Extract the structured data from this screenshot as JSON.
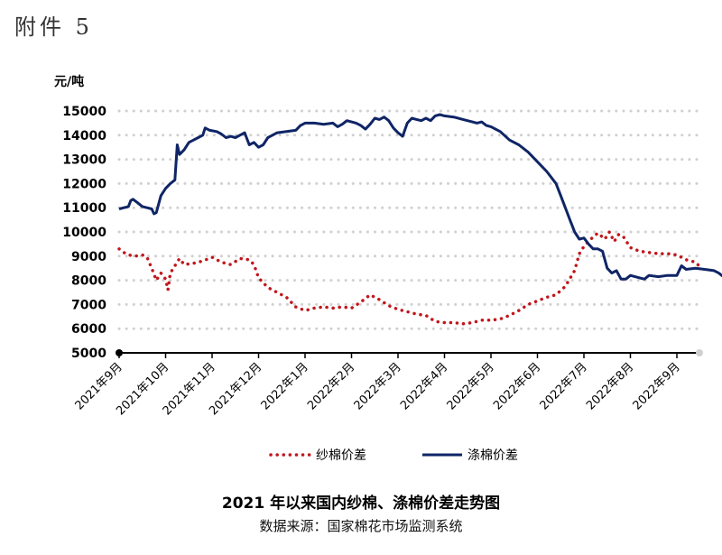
{
  "header": {
    "attachment_label": "附件 5"
  },
  "chart_data": {
    "type": "line",
    "title": "2021 年以来国内纱棉、涤棉价差走势图",
    "source": "数据来源：国家棉花市场监测系统",
    "unit_label": "元/吨",
    "ylim": [
      5000,
      15000
    ],
    "yticks": [
      5000,
      6000,
      7000,
      8000,
      9000,
      10000,
      11000,
      12000,
      13000,
      14000,
      15000
    ],
    "xticks": [
      "2021年9月",
      "2021年10月",
      "2021年11月",
      "2021年12月",
      "2022年1月",
      "2022年2月",
      "2022年3月",
      "2022年4月",
      "2022年5月",
      "2022年6月",
      "2022年7月",
      "2022年8月",
      "2022年9月"
    ],
    "grid": "horizontal-dotted",
    "legend_position": "bottom",
    "colors": {
      "yarn_cotton": "#c0171c",
      "polyester_cotton": "#0f2566",
      "grid": "#d0d0d0"
    },
    "series": [
      {
        "name": "纱棉价差",
        "style": "dotted",
        "points": [
          [
            0.0,
            9300
          ],
          [
            0.1,
            9150
          ],
          [
            0.2,
            9050
          ],
          [
            0.35,
            9000
          ],
          [
            0.5,
            9050
          ],
          [
            0.6,
            8950
          ],
          [
            0.7,
            8500
          ],
          [
            0.8,
            8000
          ],
          [
            0.9,
            8300
          ],
          [
            1.0,
            8050
          ],
          [
            1.05,
            7600
          ],
          [
            1.1,
            8300
          ],
          [
            1.2,
            8600
          ],
          [
            1.3,
            8900
          ],
          [
            1.4,
            8650
          ],
          [
            1.6,
            8700
          ],
          [
            1.8,
            8800
          ],
          [
            2.0,
            8950
          ],
          [
            2.2,
            8750
          ],
          [
            2.4,
            8650
          ],
          [
            2.6,
            8900
          ],
          [
            2.8,
            8850
          ],
          [
            2.9,
            8650
          ],
          [
            3.0,
            8100
          ],
          [
            3.2,
            7700
          ],
          [
            3.4,
            7500
          ],
          [
            3.6,
            7300
          ],
          [
            3.8,
            6900
          ],
          [
            4.0,
            6750
          ],
          [
            4.2,
            6850
          ],
          [
            4.4,
            6900
          ],
          [
            4.6,
            6850
          ],
          [
            4.8,
            6900
          ],
          [
            5.0,
            6850
          ],
          [
            5.2,
            7100
          ],
          [
            5.4,
            7400
          ],
          [
            5.6,
            7200
          ],
          [
            5.8,
            6950
          ],
          [
            6.0,
            6800
          ],
          [
            6.2,
            6700
          ],
          [
            6.4,
            6600
          ],
          [
            6.6,
            6550
          ],
          [
            6.8,
            6300
          ],
          [
            7.0,
            6250
          ],
          [
            7.2,
            6250
          ],
          [
            7.4,
            6200
          ],
          [
            7.6,
            6250
          ],
          [
            7.8,
            6350
          ],
          [
            8.0,
            6350
          ],
          [
            8.2,
            6400
          ],
          [
            8.4,
            6550
          ],
          [
            8.6,
            6750
          ],
          [
            8.8,
            7000
          ],
          [
            9.0,
            7150
          ],
          [
            9.2,
            7300
          ],
          [
            9.4,
            7400
          ],
          [
            9.6,
            7750
          ],
          [
            9.8,
            8400
          ],
          [
            9.9,
            9100
          ],
          [
            10.0,
            9400
          ],
          [
            10.1,
            9600
          ],
          [
            10.2,
            9800
          ],
          [
            10.3,
            9950
          ],
          [
            10.45,
            9700
          ],
          [
            10.55,
            10000
          ],
          [
            10.65,
            9600
          ],
          [
            10.75,
            9900
          ],
          [
            10.85,
            9800
          ],
          [
            11.0,
            9350
          ],
          [
            11.2,
            9200
          ],
          [
            11.4,
            9150
          ],
          [
            11.6,
            9100
          ],
          [
            11.8,
            9100
          ],
          [
            12.0,
            9050
          ],
          [
            12.2,
            8850
          ],
          [
            12.4,
            8750
          ],
          [
            12.5,
            8550
          ]
        ]
      },
      {
        "name": "涤棉价差",
        "style": "solid",
        "points": [
          [
            0.0,
            10950
          ],
          [
            0.1,
            11000
          ],
          [
            0.2,
            11050
          ],
          [
            0.25,
            11300
          ],
          [
            0.3,
            11350
          ],
          [
            0.4,
            11200
          ],
          [
            0.5,
            11050
          ],
          [
            0.6,
            11000
          ],
          [
            0.7,
            10950
          ],
          [
            0.75,
            10750
          ],
          [
            0.8,
            10800
          ],
          [
            0.9,
            11500
          ],
          [
            1.0,
            11800
          ],
          [
            1.1,
            12000
          ],
          [
            1.2,
            12150
          ],
          [
            1.25,
            13600
          ],
          [
            1.3,
            13200
          ],
          [
            1.4,
            13400
          ],
          [
            1.5,
            13700
          ],
          [
            1.6,
            13800
          ],
          [
            1.7,
            13900
          ],
          [
            1.8,
            14000
          ],
          [
            1.85,
            14300
          ],
          [
            1.95,
            14200
          ],
          [
            2.1,
            14150
          ],
          [
            2.2,
            14050
          ],
          [
            2.3,
            13900
          ],
          [
            2.4,
            13950
          ],
          [
            2.5,
            13900
          ],
          [
            2.6,
            14000
          ],
          [
            2.7,
            14100
          ],
          [
            2.8,
            13600
          ],
          [
            2.9,
            13700
          ],
          [
            3.0,
            13500
          ],
          [
            3.1,
            13600
          ],
          [
            3.2,
            13900
          ],
          [
            3.3,
            14000
          ],
          [
            3.4,
            14100
          ],
          [
            3.6,
            14150
          ],
          [
            3.8,
            14200
          ],
          [
            3.9,
            14400
          ],
          [
            4.0,
            14500
          ],
          [
            4.2,
            14500
          ],
          [
            4.4,
            14450
          ],
          [
            4.6,
            14500
          ],
          [
            4.7,
            14350
          ],
          [
            4.8,
            14450
          ],
          [
            4.9,
            14600
          ],
          [
            5.0,
            14550
          ],
          [
            5.1,
            14500
          ],
          [
            5.2,
            14400
          ],
          [
            5.3,
            14250
          ],
          [
            5.4,
            14450
          ],
          [
            5.5,
            14700
          ],
          [
            5.6,
            14650
          ],
          [
            5.7,
            14750
          ],
          [
            5.8,
            14600
          ],
          [
            5.9,
            14300
          ],
          [
            6.0,
            14100
          ],
          [
            6.1,
            13950
          ],
          [
            6.2,
            14500
          ],
          [
            6.3,
            14700
          ],
          [
            6.4,
            14650
          ],
          [
            6.5,
            14600
          ],
          [
            6.6,
            14700
          ],
          [
            6.7,
            14600
          ],
          [
            6.8,
            14800
          ],
          [
            6.9,
            14850
          ],
          [
            7.0,
            14800
          ],
          [
            7.2,
            14750
          ],
          [
            7.4,
            14650
          ],
          [
            7.6,
            14550
          ],
          [
            7.7,
            14500
          ],
          [
            7.8,
            14550
          ],
          [
            7.9,
            14400
          ],
          [
            8.0,
            14350
          ],
          [
            8.2,
            14150
          ],
          [
            8.4,
            13800
          ],
          [
            8.6,
            13600
          ],
          [
            8.8,
            13300
          ],
          [
            9.0,
            12900
          ],
          [
            9.2,
            12500
          ],
          [
            9.4,
            12000
          ],
          [
            9.5,
            11500
          ],
          [
            9.6,
            11000
          ],
          [
            9.7,
            10500
          ],
          [
            9.8,
            10000
          ],
          [
            9.9,
            9700
          ],
          [
            10.0,
            9750
          ],
          [
            10.1,
            9500
          ],
          [
            10.2,
            9300
          ],
          [
            10.3,
            9300
          ],
          [
            10.4,
            9200
          ],
          [
            10.5,
            8500
          ],
          [
            10.6,
            8300
          ],
          [
            10.7,
            8400
          ],
          [
            10.8,
            8050
          ],
          [
            10.9,
            8050
          ],
          [
            11.0,
            8200
          ],
          [
            11.1,
            8150
          ],
          [
            11.2,
            8100
          ],
          [
            11.3,
            8050
          ],
          [
            11.4,
            8200
          ],
          [
            11.6,
            8150
          ],
          [
            11.8,
            8200
          ],
          [
            12.0,
            8200
          ],
          [
            12.1,
            8600
          ],
          [
            12.2,
            8450
          ],
          [
            12.4,
            8500
          ],
          [
            12.6,
            8450
          ],
          [
            12.8,
            8400
          ],
          [
            12.9,
            8300
          ],
          [
            13.0,
            8150
          ],
          [
            13.05,
            8100
          ]
        ]
      }
    ]
  }
}
